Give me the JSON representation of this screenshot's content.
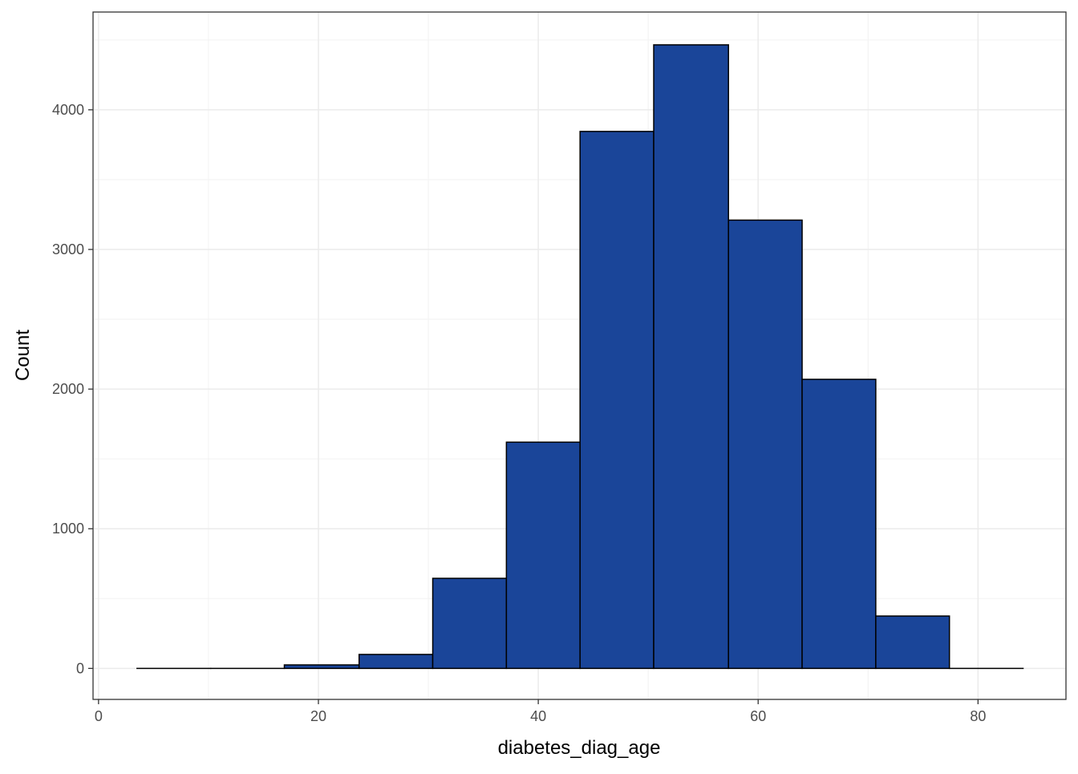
{
  "chart_data": {
    "type": "bar",
    "title": "",
    "xlabel": "diabetes_diag_age",
    "ylabel": "Count",
    "xlim": [
      -0.5,
      88
    ],
    "ylim": [
      -222,
      4700
    ],
    "x_ticks": [
      0,
      20,
      40,
      60,
      80
    ],
    "x_tick_labels": [
      "0",
      "20",
      "40",
      "60",
      "80"
    ],
    "y_ticks": [
      0,
      1000,
      2000,
      3000,
      4000
    ],
    "y_tick_labels": [
      "0",
      "1000",
      "2000",
      "3000",
      "4000"
    ],
    "grid": true,
    "legend": "none",
    "bar_color": "#1A4599",
    "bar_edge_color": "#000000",
    "bins": [
      {
        "x0": 3.5,
        "x1": 10.2,
        "count": 0
      },
      {
        "x0": 10.2,
        "x1": 16.9,
        "count": 0
      },
      {
        "x0": 16.9,
        "x1": 23.7,
        "count": 25
      },
      {
        "x0": 23.7,
        "x1": 30.4,
        "count": 100
      },
      {
        "x0": 30.4,
        "x1": 37.1,
        "count": 645
      },
      {
        "x0": 37.1,
        "x1": 43.8,
        "count": 1620
      },
      {
        "x0": 43.8,
        "x1": 50.5,
        "count": 3845
      },
      {
        "x0": 50.5,
        "x1": 57.3,
        "count": 4465
      },
      {
        "x0": 57.3,
        "x1": 64.0,
        "count": 3210
      },
      {
        "x0": 64.0,
        "x1": 70.7,
        "count": 2070
      },
      {
        "x0": 70.7,
        "x1": 77.4,
        "count": 375
      },
      {
        "x0": 77.4,
        "x1": 84.1,
        "count": 0
      }
    ]
  }
}
